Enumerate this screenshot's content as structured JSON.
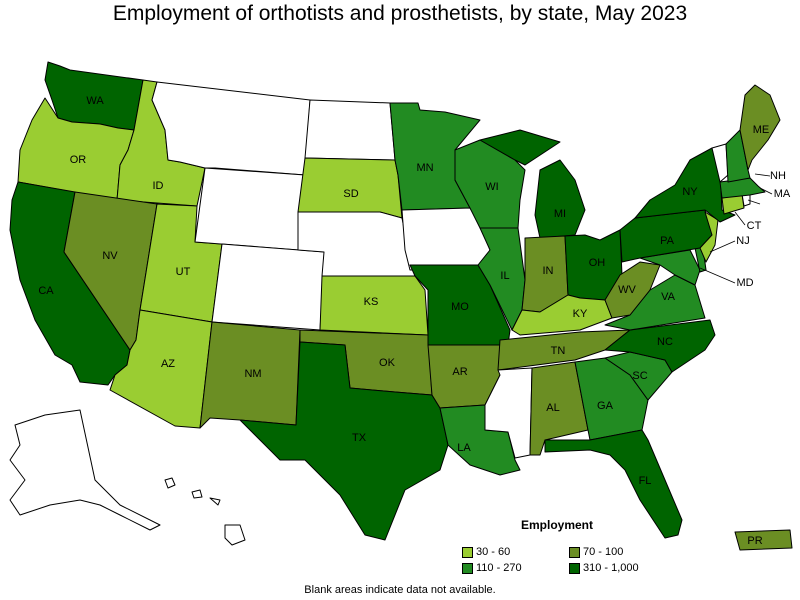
{
  "title": "Employment of orthotists and prosthetists, by state, May 2023",
  "legend": {
    "title": "Employment",
    "items": [
      {
        "label": "30 - 60",
        "color": "#9acd32"
      },
      {
        "label": "110 - 270",
        "color": "#228b22"
      },
      {
        "label": "70 - 100",
        "color": "#6b8e23"
      },
      {
        "label": "310 - 1,000",
        "color": "#006400"
      }
    ]
  },
  "footnote": "Blank areas indicate data not available.",
  "colors": {
    "c30_60": "#9acd32",
    "c70_100": "#6b8e23",
    "c110_270": "#228b22",
    "c310_1000": "#006400",
    "blank": "#ffffff"
  },
  "states": [
    {
      "abbr": "WA",
      "category": "310 - 1,000"
    },
    {
      "abbr": "OR",
      "category": "30 - 60"
    },
    {
      "abbr": "CA",
      "category": "310 - 1,000"
    },
    {
      "abbr": "ID",
      "category": "30 - 60"
    },
    {
      "abbr": "NV",
      "category": "70 - 100"
    },
    {
      "abbr": "UT",
      "category": "30 - 60"
    },
    {
      "abbr": "AZ",
      "category": "30 - 60"
    },
    {
      "abbr": "MT",
      "category": "blank"
    },
    {
      "abbr": "WY",
      "category": "blank"
    },
    {
      "abbr": "CO",
      "category": "blank"
    },
    {
      "abbr": "NM",
      "category": "70 - 100"
    },
    {
      "abbr": "ND",
      "category": "blank"
    },
    {
      "abbr": "SD",
      "category": "30 - 60"
    },
    {
      "abbr": "NE",
      "category": "blank"
    },
    {
      "abbr": "KS",
      "category": "30 - 60"
    },
    {
      "abbr": "OK",
      "category": "70 - 100"
    },
    {
      "abbr": "TX",
      "category": "310 - 1,000"
    },
    {
      "abbr": "MN",
      "category": "110 - 270"
    },
    {
      "abbr": "IA",
      "category": "blank"
    },
    {
      "abbr": "MO",
      "category": "310 - 1,000"
    },
    {
      "abbr": "AR",
      "category": "70 - 100"
    },
    {
      "abbr": "LA",
      "category": "110 - 270"
    },
    {
      "abbr": "WI",
      "category": "110 - 270"
    },
    {
      "abbr": "IL",
      "category": "110 - 270"
    },
    {
      "abbr": "MI",
      "category": "310 - 1,000"
    },
    {
      "abbr": "IN",
      "category": "70 - 100"
    },
    {
      "abbr": "OH",
      "category": "310 - 1,000"
    },
    {
      "abbr": "KY",
      "category": "30 - 60"
    },
    {
      "abbr": "TN",
      "category": "70 - 100"
    },
    {
      "abbr": "MS",
      "category": "blank"
    },
    {
      "abbr": "AL",
      "category": "70 - 100"
    },
    {
      "abbr": "GA",
      "category": "110 - 270"
    },
    {
      "abbr": "FL",
      "category": "310 - 1,000"
    },
    {
      "abbr": "SC",
      "category": "110 - 270"
    },
    {
      "abbr": "NC",
      "category": "310 - 1,000"
    },
    {
      "abbr": "VA",
      "category": "110 - 270"
    },
    {
      "abbr": "WV",
      "category": "70 - 100"
    },
    {
      "abbr": "MD",
      "category": "110 - 270"
    },
    {
      "abbr": "DE",
      "category": "110 - 270"
    },
    {
      "abbr": "PA",
      "category": "310 - 1,000"
    },
    {
      "abbr": "NJ",
      "category": "30 - 60"
    },
    {
      "abbr": "NY",
      "category": "310 - 1,000"
    },
    {
      "abbr": "CT",
      "category": "30 - 60"
    },
    {
      "abbr": "RI",
      "category": "blank"
    },
    {
      "abbr": "MA",
      "category": "110 - 270"
    },
    {
      "abbr": "VT",
      "category": "blank"
    },
    {
      "abbr": "NH",
      "category": "110 - 270"
    },
    {
      "abbr": "ME",
      "category": "70 - 100"
    },
    {
      "abbr": "AK",
      "category": "blank"
    },
    {
      "abbr": "HI",
      "category": "blank"
    },
    {
      "abbr": "PR",
      "category": "70 - 100"
    }
  ]
}
